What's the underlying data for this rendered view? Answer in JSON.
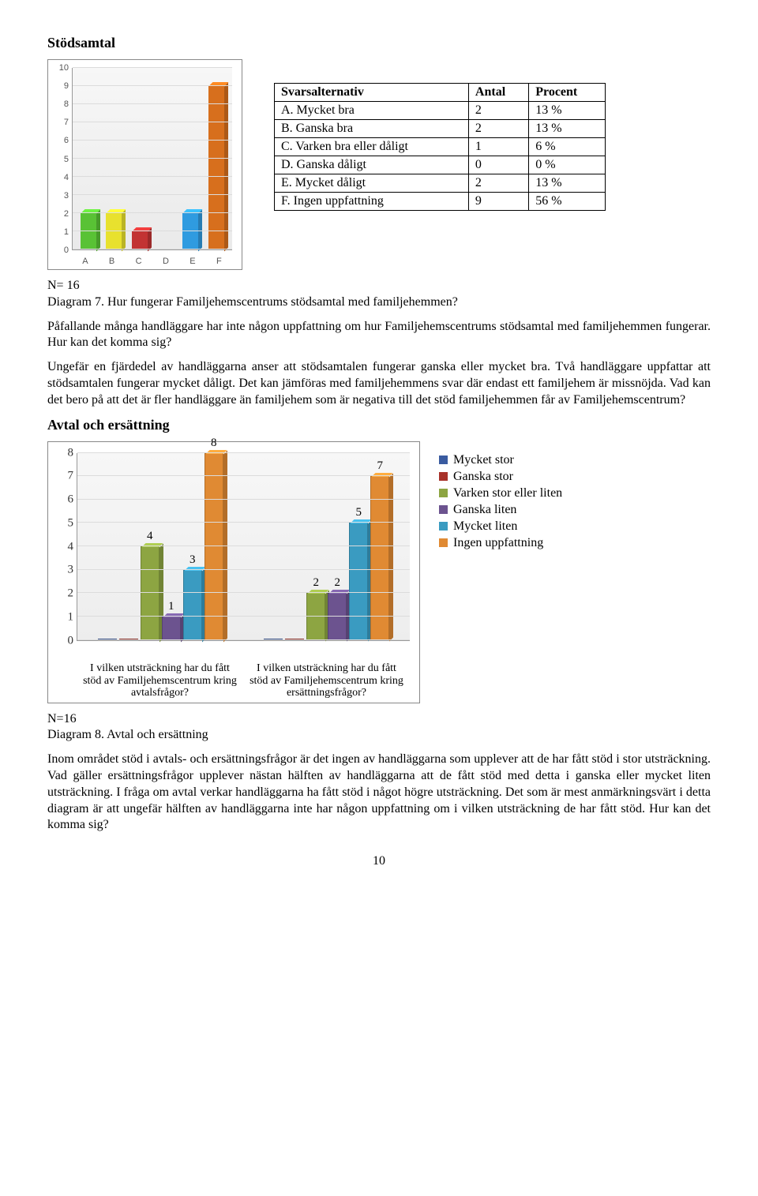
{
  "heading1": "Stödsamtal",
  "chart1": {
    "type": "bar",
    "categories": [
      "A",
      "B",
      "C",
      "D",
      "E",
      "F"
    ],
    "values": [
      2,
      2,
      1,
      0,
      2,
      9
    ],
    "colors": [
      "#59c235",
      "#e8e12e",
      "#c23333",
      "#7e3fa6",
      "#2f9be0",
      "#d76f1d"
    ],
    "ymax": 10,
    "ytick_step": 1,
    "bg": "#f2f2f2",
    "grid_color": "#dcdcdc",
    "axis_color": "#999999",
    "tick_fontsize": 11
  },
  "table1": {
    "columns": [
      "Svarsalternativ",
      "Antal",
      "Procent"
    ],
    "rows": [
      [
        "A. Mycket bra",
        "2",
        "13 %"
      ],
      [
        "B. Ganska bra",
        "2",
        "13 %"
      ],
      [
        "C. Varken bra eller dåligt",
        "1",
        "6 %"
      ],
      [
        "D. Ganska dåligt",
        "0",
        "0 %"
      ],
      [
        "E. Mycket dåligt",
        "2",
        "13 %"
      ],
      [
        "F. Ingen uppfattning",
        "9",
        "56 %"
      ]
    ]
  },
  "caption1_n": "N= 16",
  "caption1": "Diagram 7. Hur fungerar Familjehemscentrums stödsamtal med familjehemmen?",
  "para1": "Påfallande många handläggare har inte någon uppfattning om hur Familjehemscentrums stödsamtal med familjehemmen fungerar. Hur kan det komma sig?",
  "para2": "Ungefär en fjärdedel av handläggarna anser att stödsamtalen fungerar ganska eller mycket bra. Två handläggare uppfattar att stödsamtalen fungerar mycket dåligt. Det kan jämföras med familjehemmens svar där endast ett familjehem är missnöjda. Vad kan det bero på att det är fler handläggare än familjehem som är negativa till det stöd familjehemmen får av Familjehemscentrum?",
  "heading2": "Avtal och ersättning",
  "chart2": {
    "type": "grouped-bar",
    "ymax": 8,
    "ytick_step": 1,
    "group_labels": [
      "I vilken utsträckning har du fått stöd av Familjehemscentrum kring avtalsfrågor?",
      "I vilken utsträckning har du fått stöd av Familjehemscentrum kring ersättningsfrågor?"
    ],
    "series": [
      {
        "label": "Mycket stor",
        "color": "#3a5ba0",
        "values": [
          0,
          0
        ]
      },
      {
        "label": "Ganska stor",
        "color": "#a8322a",
        "values": [
          0,
          0
        ]
      },
      {
        "label": "Varken stor eller liten",
        "color": "#8da542",
        "values": [
          4,
          2
        ]
      },
      {
        "label": "Ganska liten",
        "color": "#6c538f",
        "values": [
          1,
          2
        ]
      },
      {
        "label": "Mycket liten",
        "color": "#3a9bc1",
        "values": [
          3,
          5
        ]
      },
      {
        "label": "Ingen uppfattning",
        "color": "#e08a33",
        "values": [
          8,
          7
        ]
      }
    ],
    "bg": "#f2f2f2",
    "grid_color": "#dcdcdc",
    "axis_color": "#999999",
    "label_fontsize": 15
  },
  "caption2_n": "N=16",
  "caption2": "Diagram 8. Avtal och ersättning",
  "para3": "Inom området stöd i avtals- och ersättningsfrågor är det ingen av handläggarna som upplever att de har fått stöd i stor utsträckning. Vad gäller ersättningsfrågor upplever nästan hälften av handläggarna att de fått stöd med detta i ganska eller mycket liten utsträckning. I fråga om avtal verkar handläggarna ha fått stöd i något högre utsträckning. Det som är mest anmärkningsvärt i detta diagram är att ungefär hälften av handläggarna inte har någon uppfattning om i vilken utsträckning de har fått stöd. Hur kan det komma sig?",
  "page_number": "10"
}
